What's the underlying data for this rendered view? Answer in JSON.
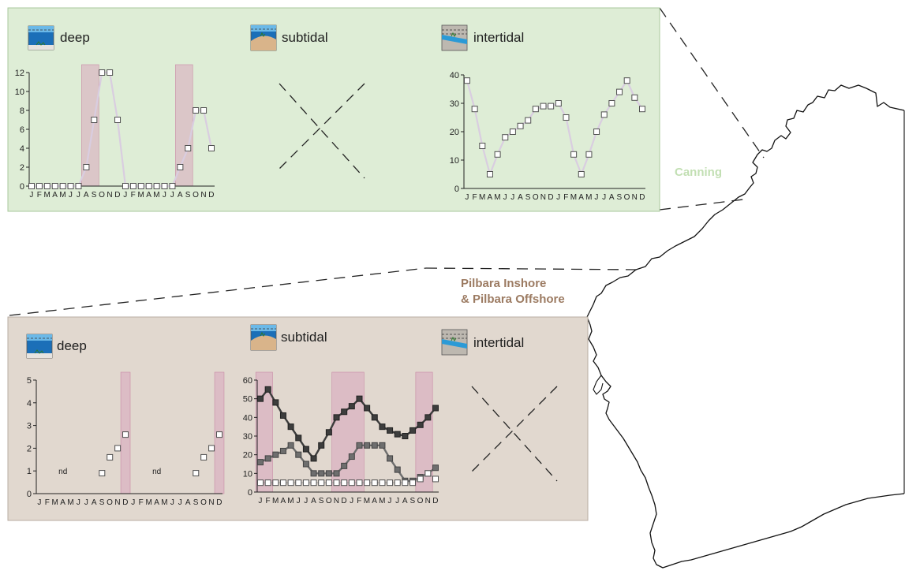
{
  "colors": {
    "canning_panel": "#deedd6",
    "canning_border": "#a9c89c",
    "pilbara_panel": "#e1d8cf",
    "pilbara_border": "#b9aea3",
    "canning_label": "#c2dfb3",
    "pilbara_label": "#9c7b62",
    "pink_band": "#d8a5bd",
    "deep_line": "#d9cde0",
    "dark_series": "#3d3d3d",
    "mid_series": "#6e6e6e",
    "light_series": "#9e9e9e",
    "marker_fill": "#ffffff",
    "marker_stroke": "#505050"
  },
  "regions": {
    "canning": "Canning",
    "pilbara_line1": "Pilbara Inshore",
    "pilbara_line2": "& Pilbara Offshore"
  },
  "canning": {
    "headers": {
      "deep": "deep",
      "subtidal": "subtidal",
      "intertidal": "intertidal"
    },
    "icons": {
      "deep": "deep-water-icon",
      "subtidal": "subtidal-habitat-icon",
      "intertidal": "intertidal-habitat-icon"
    }
  },
  "pilbara": {
    "headers": {
      "deep": "deep",
      "subtidal": "subtidal",
      "intertidal": "intertidal"
    },
    "icons": {
      "deep": "deep-water-icon",
      "subtidal": "subtidal-habitat-icon",
      "intertidal": "intertidal-habitat-icon"
    },
    "nd_label": "nd"
  },
  "months": [
    "J",
    "F",
    "M",
    "A",
    "M",
    "J",
    "J",
    "A",
    "S",
    "O",
    "N",
    "D",
    "J",
    "F",
    "M",
    "A",
    "M",
    "J",
    "J",
    "A",
    "S",
    "O",
    "N",
    "D"
  ],
  "chart_data": [
    {
      "id": "canning-deep",
      "type": "line",
      "x": [
        "J",
        "F",
        "M",
        "A",
        "M",
        "J",
        "J",
        "A",
        "S",
        "O",
        "N",
        "D",
        "J",
        "F",
        "M",
        "A",
        "M",
        "J",
        "J",
        "A",
        "S",
        "O",
        "N",
        "D"
      ],
      "ylim": [
        0,
        12
      ],
      "yticks": [
        0,
        2,
        4,
        6,
        8,
        10,
        12
      ],
      "shaded_months": [
        [
          7,
          8
        ],
        [
          19,
          20
        ]
      ],
      "series": [
        {
          "values": [
            0,
            0,
            0,
            0,
            0,
            0,
            0,
            2,
            7,
            12,
            12,
            7,
            0,
            0,
            0,
            0,
            0,
            0,
            0,
            2,
            4,
            8,
            8,
            4
          ],
          "style": "light-line-open-markers"
        }
      ]
    },
    {
      "id": "canning-intertidal",
      "type": "line",
      "x": [
        "J",
        "F",
        "M",
        "A",
        "M",
        "J",
        "J",
        "A",
        "S",
        "O",
        "N",
        "D",
        "J",
        "F",
        "M",
        "A",
        "M",
        "J",
        "J",
        "A",
        "S",
        "O",
        "N",
        "D"
      ],
      "ylim": [
        0,
        40
      ],
      "yticks": [
        0,
        10,
        20,
        30,
        40
      ],
      "series": [
        {
          "values": [
            38,
            28,
            15,
            5,
            12,
            18,
            20,
            22,
            24,
            28,
            29,
            29,
            30,
            25,
            12,
            5,
            12,
            20,
            26,
            30,
            34,
            38,
            32,
            28
          ],
          "style": "light-line-open-markers"
        }
      ]
    },
    {
      "id": "pilbara-deep",
      "type": "scatter",
      "x": [
        "J",
        "F",
        "M",
        "A",
        "M",
        "J",
        "J",
        "A",
        "S",
        "O",
        "N",
        "D",
        "J",
        "F",
        "M",
        "A",
        "M",
        "J",
        "J",
        "A",
        "S",
        "O",
        "N",
        "D"
      ],
      "ylim": [
        0,
        5
      ],
      "yticks": [
        0,
        1,
        2,
        3,
        4,
        5
      ],
      "shaded_months": [
        [
          11,
          11
        ],
        [
          23,
          23
        ]
      ],
      "nd_months": [
        3,
        15
      ],
      "series": [
        {
          "values": [
            null,
            null,
            null,
            null,
            null,
            null,
            null,
            null,
            0.9,
            1.6,
            2.0,
            2.6,
            null,
            null,
            null,
            null,
            null,
            null,
            null,
            null,
            0.9,
            1.6,
            2.0,
            2.6
          ],
          "style": "open-markers"
        }
      ]
    },
    {
      "id": "pilbara-subtidal",
      "type": "line",
      "x": [
        "J",
        "F",
        "M",
        "A",
        "M",
        "J",
        "J",
        "A",
        "S",
        "O",
        "N",
        "D",
        "J",
        "F",
        "M",
        "A",
        "M",
        "J",
        "J",
        "A",
        "S",
        "O",
        "N",
        "D"
      ],
      "ylim": [
        0,
        60
      ],
      "yticks": [
        0,
        10,
        20,
        30,
        40,
        50,
        60
      ],
      "shaded_months": [
        [
          0,
          1
        ],
        [
          10,
          13
        ],
        [
          21,
          22
        ]
      ],
      "series": [
        {
          "values": [
            50,
            55,
            48,
            41,
            35,
            29,
            23,
            18,
            25,
            32,
            40,
            43,
            46,
            50,
            45,
            40,
            35,
            33,
            31,
            30,
            33,
            36,
            40,
            45
          ],
          "style": "dark"
        },
        {
          "values": [
            16,
            18,
            20,
            22,
            25,
            20,
            15,
            10,
            10,
            10,
            10,
            14,
            19,
            25,
            25,
            25,
            25,
            18,
            12,
            6,
            6,
            8,
            10,
            13
          ],
          "style": "mid"
        },
        {
          "values": [
            5,
            5,
            5,
            5,
            5,
            5,
            5,
            5,
            5,
            5,
            5,
            5,
            5,
            5,
            5,
            5,
            5,
            5,
            5,
            5,
            5,
            7,
            10,
            7
          ],
          "style": "open"
        }
      ]
    }
  ]
}
